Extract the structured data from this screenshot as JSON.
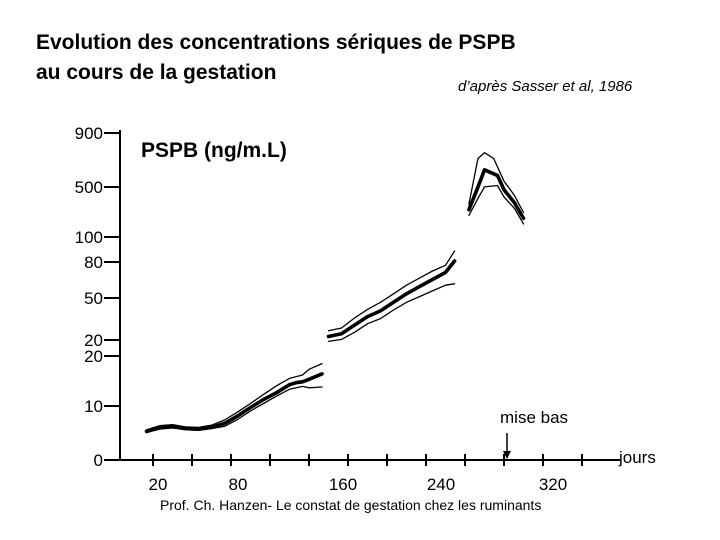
{
  "title_line1": "Evolution des concentrations sériques de PSPB",
  "title_line2": "au cours de la gestation",
  "source": "d’après Sasser et al, 1986",
  "footer": "Prof. Ch. Hanzen- Le constat de gestation chez les ruminants",
  "chart_data": {
    "type": "line",
    "title": "Evolution des concentrations sériques de PSPB au cours de la gestation",
    "ylabel": "PSPB (ng/m.L)",
    "xlabel": "jours",
    "x_ticks": [
      "20",
      "80",
      "160",
      "240",
      "320"
    ],
    "y_ticks": [
      "900",
      "500",
      "100",
      "80",
      "50",
      "20",
      "20",
      "10",
      "0"
    ],
    "xlim": [
      0,
      355
    ],
    "grid": false,
    "annotation": "mise bas",
    "annotation_x": 285,
    "series": [
      {
        "role": "mean",
        "segments": [
          [
            [
              25,
              4.2
            ],
            [
              35,
              5.6
            ],
            [
              45,
              6.0
            ],
            [
              55,
              5.2
            ],
            [
              65,
              5.0
            ],
            [
              75,
              5.6
            ],
            [
              85,
              7.0
            ],
            [
              95,
              9.6
            ],
            [
              105,
              12.6
            ],
            [
              115,
              15.4
            ],
            [
              125,
              17.8
            ],
            [
              135,
              20.6
            ],
            [
              140,
              21.3
            ],
            [
              145,
              21.6
            ],
            [
              150,
              22.5
            ],
            [
              160,
              24.4
            ]
          ],
          [
            [
              165,
              37.5
            ],
            [
              175,
              38.5
            ],
            [
              185,
              41.5
            ],
            [
              195,
              44.5
            ],
            [
              205,
              46.5
            ],
            [
              215,
              49.5
            ],
            [
              225,
              52.5
            ],
            [
              235,
              55.0
            ],
            [
              245,
              57.5
            ],
            [
              255,
              60.0
            ],
            [
              262,
              64.0
            ]
          ],
          [
            [
              273,
              82.0
            ],
            [
              280,
              90.0
            ],
            [
              285,
              96.0
            ],
            [
              295,
              94.0
            ],
            [
              300,
              89.0
            ],
            [
              308,
              84.5
            ],
            [
              315,
              79.0
            ]
          ]
        ]
      },
      {
        "role": "upper",
        "segments": [
          [
            [
              25,
              4.8
            ],
            [
              35,
              6.2
            ],
            [
              45,
              6.6
            ],
            [
              55,
              5.8
            ],
            [
              65,
              5.6
            ],
            [
              75,
              6.4
            ],
            [
              85,
              8.2
            ],
            [
              95,
              11.0
            ],
            [
              105,
              14.0
            ],
            [
              115,
              17.2
            ],
            [
              125,
              20.2
            ],
            [
              135,
              22.8
            ],
            [
              145,
              24.0
            ],
            [
              150,
              26.0
            ],
            [
              160,
              28.0
            ]
          ],
          [
            [
              165,
              39.5
            ],
            [
              175,
              40.5
            ],
            [
              185,
              44.0
            ],
            [
              195,
              47.0
            ],
            [
              205,
              49.5
            ],
            [
              215,
              52.5
            ],
            [
              225,
              55.5
            ],
            [
              235,
              58.0
            ],
            [
              245,
              60.5
            ],
            [
              255,
              62.5
            ],
            [
              262,
              67.5
            ]
          ],
          [
            [
              273,
              84.0
            ],
            [
              280,
              100.0
            ],
            [
              285,
              102.0
            ],
            [
              292,
              100.0
            ],
            [
              300,
              92.0
            ],
            [
              308,
              87.0
            ],
            [
              315,
              81.0
            ]
          ]
        ]
      },
      {
        "role": "lower",
        "segments": [
          [
            [
              25,
              3.8
            ],
            [
              35,
              5.0
            ],
            [
              45,
              5.4
            ],
            [
              55,
              4.8
            ],
            [
              65,
              4.6
            ],
            [
              75,
              5.2
            ],
            [
              85,
              6.0
            ],
            [
              95,
              8.4
            ],
            [
              105,
              11.4
            ],
            [
              115,
              14.0
            ],
            [
              125,
              16.6
            ],
            [
              135,
              19.0
            ],
            [
              145,
              20.0
            ],
            [
              150,
              19.5
            ],
            [
              160,
              19.8
            ]
          ],
          [
            [
              165,
              35.8
            ],
            [
              175,
              36.5
            ],
            [
              185,
              39.0
            ],
            [
              195,
              42.0
            ],
            [
              205,
              43.8
            ],
            [
              215,
              46.8
            ],
            [
              225,
              49.5
            ],
            [
              235,
              51.5
            ],
            [
              245,
              53.5
            ],
            [
              255,
              55.5
            ],
            [
              262,
              56.0
            ]
          ],
          [
            [
              273,
              80.0
            ],
            [
              280,
              86.0
            ],
            [
              285,
              90.0
            ],
            [
              295,
              90.5
            ],
            [
              300,
              86.5
            ],
            [
              308,
              82.5
            ],
            [
              315,
              77.0
            ]
          ]
        ]
      }
    ]
  }
}
